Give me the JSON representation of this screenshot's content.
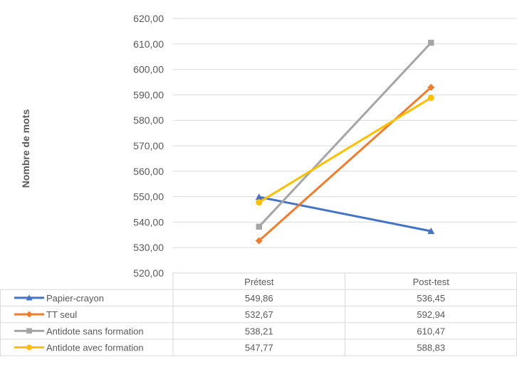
{
  "chart_data": {
    "type": "line",
    "ylabel": "Nombre de mots",
    "ylim": [
      520,
      620
    ],
    "ytick_step": 10,
    "ytick_labels": [
      "520,00",
      "530,00",
      "540,00",
      "550,00",
      "560,00",
      "570,00",
      "580,00",
      "590,00",
      "600,00",
      "610,00",
      "620,00"
    ],
    "categories": [
      "Prétest",
      "Post-test"
    ],
    "grid": true,
    "legend": "data-table",
    "series": [
      {
        "name": "Papier-crayon",
        "values": [
          549.86,
          536.45
        ],
        "value_labels": [
          "549,86",
          "536,45"
        ],
        "color": "#4472C4",
        "marker": "triangle"
      },
      {
        "name": "TT seul",
        "values": [
          532.67,
          592.94
        ],
        "value_labels": [
          "532,67",
          "592,94"
        ],
        "color": "#ED7D31",
        "marker": "diamond"
      },
      {
        "name": "Antidote sans formation",
        "values": [
          538.21,
          610.47
        ],
        "value_labels": [
          "538,21",
          "610,47"
        ],
        "color": "#A5A5A5",
        "marker": "square"
      },
      {
        "name": "Antidote avec formation",
        "values": [
          547.77,
          588.83
        ],
        "value_labels": [
          "547,77",
          "588,83"
        ],
        "color": "#FFC000",
        "marker": "circle"
      }
    ]
  }
}
